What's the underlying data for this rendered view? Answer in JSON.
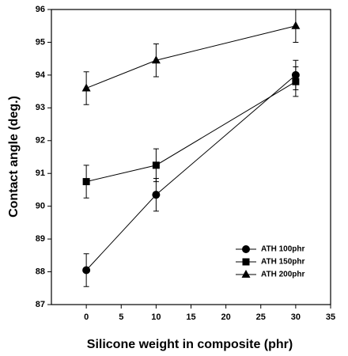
{
  "chart_data": {
    "type": "line",
    "xlabel": "Silicone weight in composite (phr)",
    "ylabel": "Contact angle (deg.)",
    "x": [
      0,
      10,
      30
    ],
    "series": [
      {
        "name": "ATH 100phr",
        "color": "#000000",
        "marker": "circle",
        "values": [
          88.05,
          90.35,
          94.0
        ],
        "errors": [
          0.5,
          0.5,
          0.45
        ]
      },
      {
        "name": "ATH 150phr",
        "color": "#000000",
        "marker": "square",
        "values": [
          90.75,
          91.25,
          93.8
        ],
        "errors": [
          0.5,
          0.5,
          0.45
        ]
      },
      {
        "name": "ATH 200phr",
        "color": "#000000",
        "marker": "triangle",
        "values": [
          93.6,
          94.45,
          95.5
        ],
        "errors": [
          0.5,
          0.5,
          0.5
        ]
      }
    ],
    "xlim": [
      -5,
      35
    ],
    "xticks": [
      0,
      5,
      10,
      15,
      20,
      25,
      30,
      35
    ],
    "ylim": [
      87,
      96
    ],
    "yticks": [
      87,
      88,
      89,
      90,
      91,
      92,
      93,
      94,
      95,
      96
    ],
    "grid": false,
    "legend_position": "lower right"
  }
}
